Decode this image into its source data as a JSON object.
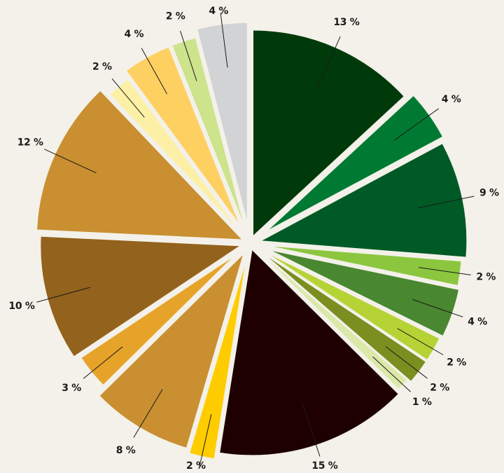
{
  "chart_data": {
    "type": "pie",
    "title": "",
    "legend": "none",
    "slices": [
      {
        "label": "13 %",
        "value": 13,
        "color": "#003a0a"
      },
      {
        "label": "4 %",
        "value": 4,
        "color": "#007a33"
      },
      {
        "label": "9 %",
        "value": 9,
        "color": "#005a26"
      },
      {
        "label": "2 %",
        "value": 2,
        "color": "#8cc63f"
      },
      {
        "label": "4 %",
        "value": 4,
        "color": "#498730"
      },
      {
        "label": "2 %",
        "value": 2,
        "color": "#b5d334"
      },
      {
        "label": "2 %",
        "value": 2,
        "color": "#7a8f20"
      },
      {
        "label": "1 %",
        "value": 1,
        "color": "#dbe8a8"
      },
      {
        "label": "15 %",
        "value": 15,
        "color": "#1e0000"
      },
      {
        "label": "2 %",
        "value": 2,
        "color": "#ffcc00"
      },
      {
        "label": "8 %",
        "value": 8,
        "color": "#c98f30"
      },
      {
        "label": "3 %",
        "value": 3,
        "color": "#e6a32a"
      },
      {
        "label": "10 %",
        "value": 10,
        "color": "#93621c"
      },
      {
        "label": "12 %",
        "value": 12,
        "color": "#c98f30"
      },
      {
        "label": "2 %",
        "value": 2,
        "color": "#fcf0a6"
      },
      {
        "label": "4 %",
        "value": 4,
        "color": "#fed062"
      },
      {
        "label": "2 %",
        "value": 2,
        "color": "#cde38c"
      },
      {
        "label": "4 %",
        "value": 4,
        "color": "#d2d3d5"
      }
    ]
  }
}
